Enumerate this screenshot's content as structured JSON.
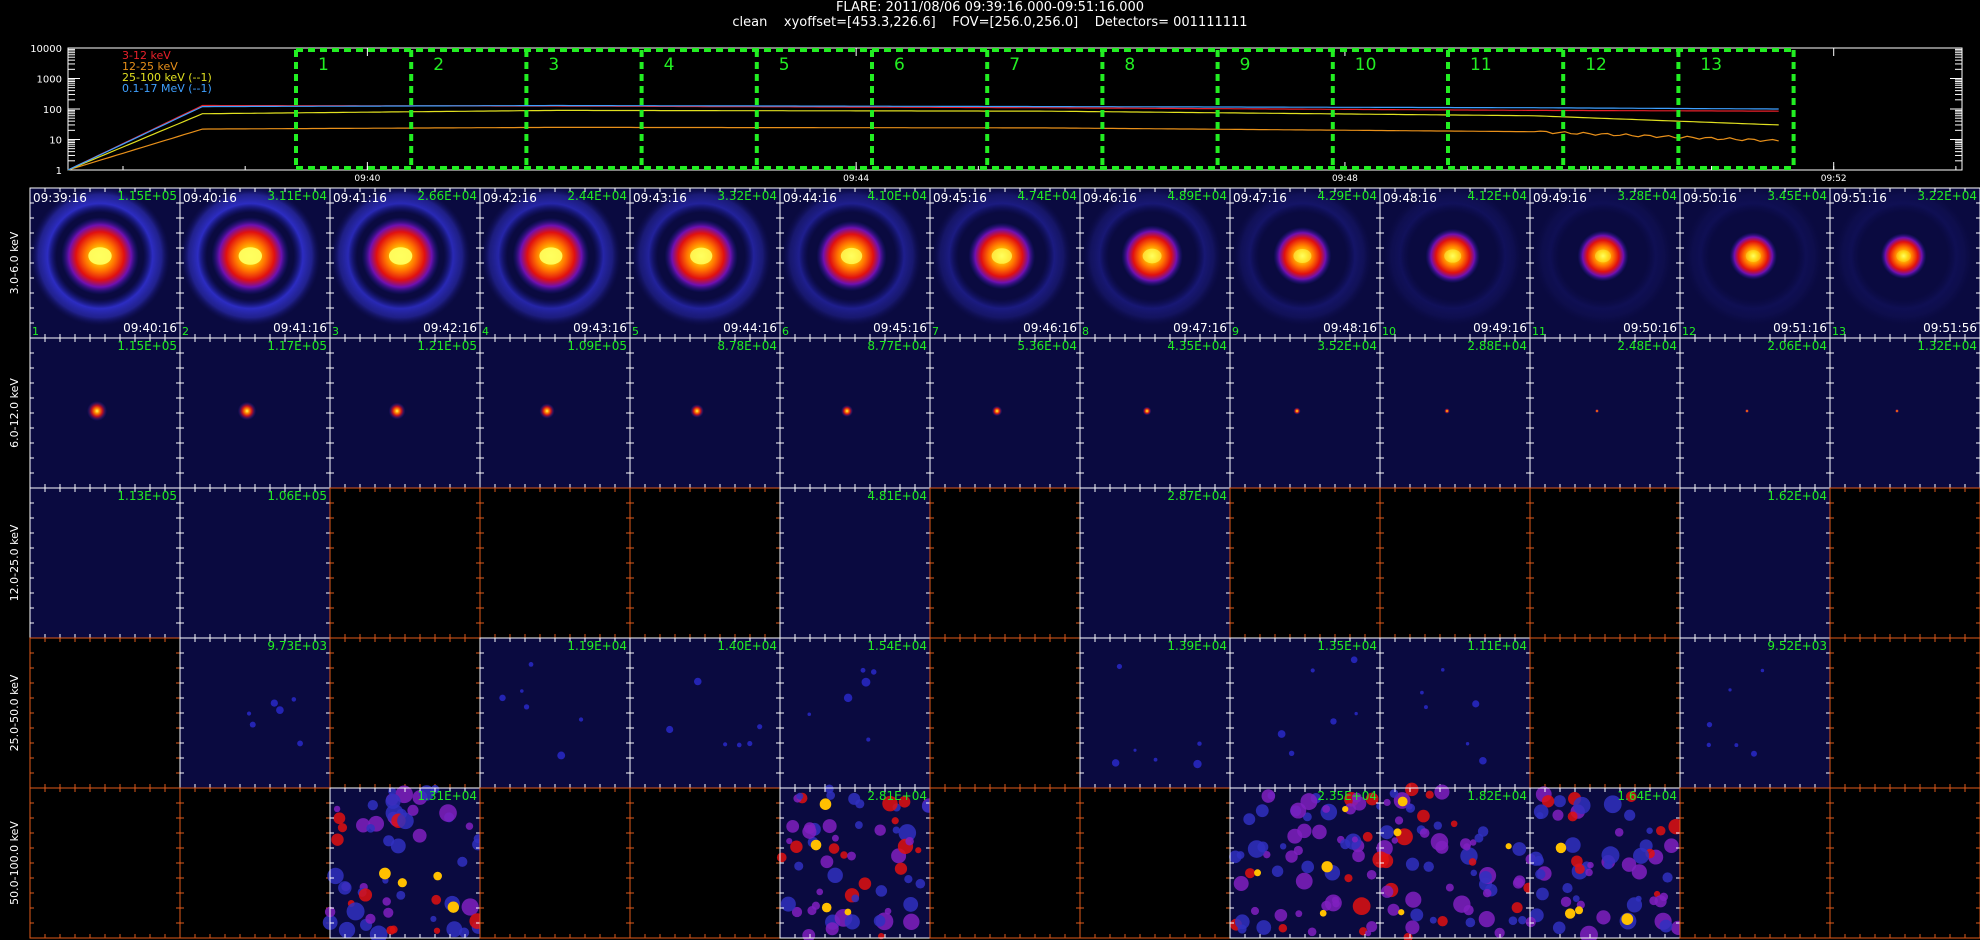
{
  "header": {
    "title": "FLARE: 2011/08/06 09:39:16.000-09:51:16.000",
    "subtitle": "clean    xyoffset=[453.3,226.6]    FOV=[256.0,256.0]    Detectors= 001111111"
  },
  "colors": {
    "band_3_12": "#e8202a",
    "band_12_25": "#e8901a",
    "band_25_100": "#e0e020",
    "band_01_17": "#3fa0ff",
    "interval_box": "#22ee22",
    "counts_text": "#22ee22",
    "tick_orange": "#e05a1a"
  },
  "chart_data": [
    {
      "type": "line",
      "title": "",
      "yscale": "log",
      "ylim": [
        1,
        10000
      ],
      "y_ticks": [
        "10000",
        "1000",
        "100",
        "10",
        "1"
      ],
      "x_ticks": [
        "09:40",
        "09:44",
        "09:48",
        "09:52"
      ],
      "legend": [
        "3-12 keV",
        "12-25 keV",
        "25-100 keV (--1)",
        "0.1-17 MeV (--1)"
      ],
      "legend_position": "top-left",
      "intervals": [
        "1",
        "2",
        "3",
        "4",
        "5",
        "6",
        "7",
        "8",
        "9",
        "10",
        "11",
        "12",
        "13"
      ],
      "series": [
        {
          "name": "3-12 keV",
          "x_min": [
            0,
            1.1,
            4,
            8,
            12,
            14
          ],
          "values": [
            1,
            130,
            125,
            110,
            90,
            85
          ]
        },
        {
          "name": "12-25 keV",
          "x_min": [
            0,
            1.1,
            4,
            8,
            12,
            14
          ],
          "values": [
            1,
            22,
            25,
            24,
            18,
            9
          ]
        },
        {
          "name": "25-100 keV (--1)",
          "x_min": [
            0,
            1.1,
            4,
            8,
            12,
            14
          ],
          "values": [
            1,
            70,
            90,
            85,
            60,
            30
          ]
        },
        {
          "name": "0.1-17 MeV (--1)",
          "x_min": [
            0,
            1.1,
            4,
            8,
            12,
            14
          ],
          "values": [
            1,
            120,
            130,
            120,
            110,
            100
          ]
        }
      ]
    },
    {
      "type": "heatmap",
      "rows": [
        {
          "label": "3.0-6.0 keV",
          "peaks": [
            "1.15E+05",
            "3.11E+04",
            "2.66E+04",
            "2.44E+04",
            "3.32E+04",
            "4.10E+04",
            "4.74E+04",
            "4.89E+04",
            "4.29E+04",
            "4.12E+04",
            "3.28E+04",
            "3.45E+04",
            "3.22E+04"
          ]
        },
        {
          "label": "6.0-12.0 keV",
          "peaks": [
            "1.15E+05",
            "1.17E+05",
            "1.21E+05",
            "1.09E+05",
            "8.78E+04",
            "8.77E+04",
            "5.36E+04",
            "4.35E+04",
            "3.52E+04",
            "2.88E+04",
            "2.48E+04",
            "2.06E+04",
            "1.32E+04"
          ]
        },
        {
          "label": "12.0-25.0 keV",
          "peaks": [
            "1.13E+05",
            "1.06E+05",
            "",
            "",
            "",
            "4.81E+04",
            "",
            "2.87E+04",
            "",
            "",
            "",
            "1.62E+04",
            ""
          ]
        },
        {
          "label": "25.0-50.0 keV",
          "peaks": [
            "",
            "9.73E+03",
            "",
            "1.19E+04",
            "1.40E+04",
            "1.54E+04",
            "",
            "1.39E+04",
            "1.35E+04",
            "1.11E+04",
            "",
            "9.52E+03",
            ""
          ]
        },
        {
          "label": "50.0-100.0 keV",
          "peaks": [
            "",
            "",
            "1.31E+04",
            "",
            "",
            "2.81E+04",
            "",
            "",
            "2.35E+04",
            "1.82E+04",
            "1.64E+04",
            "",
            ""
          ]
        }
      ],
      "start_times": [
        "09:39:16",
        "09:40:16",
        "09:41:16",
        "09:42:16",
        "09:43:16",
        "09:44:16",
        "09:45:16",
        "09:46:16",
        "09:47:16",
        "09:48:16",
        "09:49:16",
        "09:50:16",
        "09:51:16"
      ],
      "end_times": [
        "09:40:16",
        "09:41:16",
        "09:42:16",
        "09:43:16",
        "09:44:16",
        "09:45:16",
        "09:46:16",
        "09:47:16",
        "09:48:16",
        "09:49:16",
        "09:50:16",
        "09:51:16",
        "09:51:56"
      ],
      "interval_numbers": [
        "1",
        "2",
        "3",
        "4",
        "5",
        "6",
        "7",
        "8",
        "9",
        "10",
        "11",
        "12",
        "13"
      ]
    }
  ]
}
